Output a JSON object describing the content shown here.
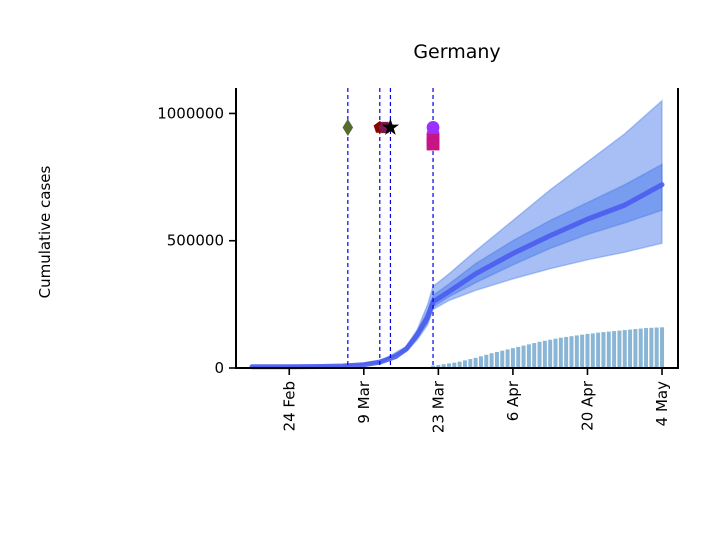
{
  "chart_data": {
    "type": "line",
    "title": "Germany",
    "xlabel": "",
    "ylabel": "Cumulative cases",
    "x_type": "date",
    "xlim": [
      "2020-02-14",
      "2020-05-07"
    ],
    "ylim": [
      0,
      1100000
    ],
    "x_ticks": [
      {
        "date": "2020-02-24",
        "label": "24 Feb"
      },
      {
        "date": "2020-03-09",
        "label": "9 Mar"
      },
      {
        "date": "2020-03-23",
        "label": "23 Mar"
      },
      {
        "date": "2020-04-06",
        "label": "6 Apr"
      },
      {
        "date": "2020-04-20",
        "label": "20 Apr"
      },
      {
        "date": "2020-05-04",
        "label": "4 May"
      }
    ],
    "y_ticks": [
      {
        "value": 0,
        "label": "0"
      },
      {
        "value": 500000,
        "label": "500000"
      },
      {
        "value": 1000000,
        "label": "1000000"
      }
    ],
    "grid": false,
    "series": [
      {
        "kind": "line",
        "color": "#4a5cf0",
        "points": [
          [
            "2020-02-17",
            5000
          ],
          [
            "2020-02-24",
            5000
          ],
          [
            "2020-03-01",
            6000
          ],
          [
            "2020-03-05",
            8000
          ],
          [
            "2020-03-09",
            13000
          ],
          [
            "2020-03-12",
            23000
          ],
          [
            "2020-03-15",
            45000
          ],
          [
            "2020-03-17",
            75000
          ],
          [
            "2020-03-19",
            130000
          ],
          [
            "2020-03-21",
            200000
          ],
          [
            "2020-03-22",
            260000
          ],
          [
            "2020-03-25",
            300000
          ],
          [
            "2020-03-30",
            370000
          ],
          [
            "2020-04-06",
            450000
          ],
          [
            "2020-04-13",
            520000
          ],
          [
            "2020-04-20",
            585000
          ],
          [
            "2020-04-27",
            640000
          ],
          [
            "2020-05-04",
            720000
          ]
        ]
      },
      {
        "kind": "band",
        "color": "#3d70e8",
        "opacity": 0.45,
        "upper": [
          [
            "2020-02-17",
            7000
          ],
          [
            "2020-03-05",
            9000
          ],
          [
            "2020-03-12",
            25000
          ],
          [
            "2020-03-17",
            85000
          ],
          [
            "2020-03-19",
            150000
          ],
          [
            "2020-03-21",
            250000
          ],
          [
            "2020-03-22",
            320000
          ],
          [
            "2020-03-25",
            370000
          ],
          [
            "2020-03-30",
            460000
          ],
          [
            "2020-04-06",
            580000
          ],
          [
            "2020-04-13",
            700000
          ],
          [
            "2020-04-20",
            810000
          ],
          [
            "2020-04-27",
            920000
          ],
          [
            "2020-05-04",
            1050000
          ]
        ],
        "lower": [
          [
            "2020-02-17",
            3000
          ],
          [
            "2020-03-05",
            7000
          ],
          [
            "2020-03-12",
            20000
          ],
          [
            "2020-03-17",
            65000
          ],
          [
            "2020-03-19",
            110000
          ],
          [
            "2020-03-21",
            170000
          ],
          [
            "2020-03-22",
            230000
          ],
          [
            "2020-03-25",
            265000
          ],
          [
            "2020-03-30",
            305000
          ],
          [
            "2020-04-06",
            350000
          ],
          [
            "2020-04-13",
            390000
          ],
          [
            "2020-04-20",
            425000
          ],
          [
            "2020-04-27",
            455000
          ],
          [
            "2020-05-04",
            490000
          ]
        ]
      },
      {
        "kind": "band",
        "color": "#3d70e8",
        "opacity": 0.45,
        "upper": [
          [
            "2020-02-17",
            6000
          ],
          [
            "2020-03-05",
            8500
          ],
          [
            "2020-03-12",
            24000
          ],
          [
            "2020-03-17",
            80000
          ],
          [
            "2020-03-19",
            140000
          ],
          [
            "2020-03-21",
            225000
          ],
          [
            "2020-03-22",
            285000
          ],
          [
            "2020-03-25",
            330000
          ],
          [
            "2020-03-30",
            410000
          ],
          [
            "2020-04-06",
            500000
          ],
          [
            "2020-04-13",
            580000
          ],
          [
            "2020-04-20",
            650000
          ],
          [
            "2020-04-27",
            720000
          ],
          [
            "2020-05-04",
            800000
          ]
        ],
        "lower": [
          [
            "2020-02-17",
            4000
          ],
          [
            "2020-03-05",
            7500
          ],
          [
            "2020-03-12",
            21000
          ],
          [
            "2020-03-17",
            70000
          ],
          [
            "2020-03-19",
            120000
          ],
          [
            "2020-03-21",
            180000
          ],
          [
            "2020-03-22",
            240000
          ],
          [
            "2020-03-25",
            280000
          ],
          [
            "2020-03-30",
            335000
          ],
          [
            "2020-04-06",
            405000
          ],
          [
            "2020-04-13",
            470000
          ],
          [
            "2020-04-20",
            525000
          ],
          [
            "2020-04-27",
            570000
          ],
          [
            "2020-05-04",
            620000
          ]
        ]
      },
      {
        "kind": "bar",
        "color": "#8ab6d6",
        "points": [
          [
            "2020-03-22",
            9000
          ],
          [
            "2020-03-23",
            12000
          ],
          [
            "2020-03-24",
            15000
          ],
          [
            "2020-03-25",
            18000
          ],
          [
            "2020-03-26",
            21000
          ],
          [
            "2020-03-27",
            25000
          ],
          [
            "2020-03-28",
            30000
          ],
          [
            "2020-03-29",
            35000
          ],
          [
            "2020-03-30",
            40000
          ],
          [
            "2020-03-31",
            46000
          ],
          [
            "2020-04-01",
            52000
          ],
          [
            "2020-04-02",
            58000
          ],
          [
            "2020-04-03",
            63000
          ],
          [
            "2020-04-04",
            68000
          ],
          [
            "2020-04-05",
            73000
          ],
          [
            "2020-04-06",
            78000
          ],
          [
            "2020-04-07",
            83000
          ],
          [
            "2020-04-08",
            88000
          ],
          [
            "2020-04-09",
            93000
          ],
          [
            "2020-04-10",
            98000
          ],
          [
            "2020-04-11",
            103000
          ],
          [
            "2020-04-12",
            107000
          ],
          [
            "2020-04-13",
            111000
          ],
          [
            "2020-04-14",
            115000
          ],
          [
            "2020-04-15",
            119000
          ],
          [
            "2020-04-16",
            122000
          ],
          [
            "2020-04-17",
            125000
          ],
          [
            "2020-04-18",
            128000
          ],
          [
            "2020-04-19",
            131000
          ],
          [
            "2020-04-20",
            134000
          ],
          [
            "2020-04-21",
            136000
          ],
          [
            "2020-04-22",
            139000
          ],
          [
            "2020-04-23",
            141000
          ],
          [
            "2020-04-24",
            143000
          ],
          [
            "2020-04-25",
            145000
          ],
          [
            "2020-04-26",
            147000
          ],
          [
            "2020-04-27",
            149000
          ],
          [
            "2020-04-28",
            151000
          ],
          [
            "2020-04-29",
            153000
          ],
          [
            "2020-04-30",
            155000
          ],
          [
            "2020-05-01",
            157000
          ],
          [
            "2020-05-02",
            158000
          ],
          [
            "2020-05-03",
            159000
          ],
          [
            "2020-05-04",
            160000
          ]
        ]
      }
    ],
    "vlines": [
      {
        "date": "2020-03-06",
        "color": "#0000ee"
      },
      {
        "date": "2020-03-12",
        "color": "#0000ee"
      },
      {
        "date": "2020-03-14",
        "color": "#0000ee"
      },
      {
        "date": "2020-03-22",
        "color": "#0000ee"
      }
    ],
    "markers": [
      {
        "date": "2020-03-06",
        "y": 945000,
        "shape": "diamond",
        "color": "#556b2f"
      },
      {
        "date": "2020-03-12",
        "y": 945000,
        "shape": "pentagon",
        "color": "#8b0000"
      },
      {
        "date": "2020-03-13",
        "y": 945000,
        "shape": "hexagon",
        "color": "#7a1a50"
      },
      {
        "date": "2020-03-14",
        "y": 945000,
        "shape": "star",
        "color": "#000000"
      },
      {
        "date": "2020-03-22",
        "y": 945000,
        "shape": "circle",
        "color": "#9b30ff"
      },
      {
        "date": "2020-03-22",
        "y": 920000,
        "shape": "circle",
        "color": "#9b30ff"
      },
      {
        "date": "2020-03-22",
        "y": 895000,
        "shape": "square",
        "color": "#c71585"
      },
      {
        "date": "2020-03-22",
        "y": 880000,
        "shape": "square",
        "color": "#c71585"
      }
    ]
  }
}
